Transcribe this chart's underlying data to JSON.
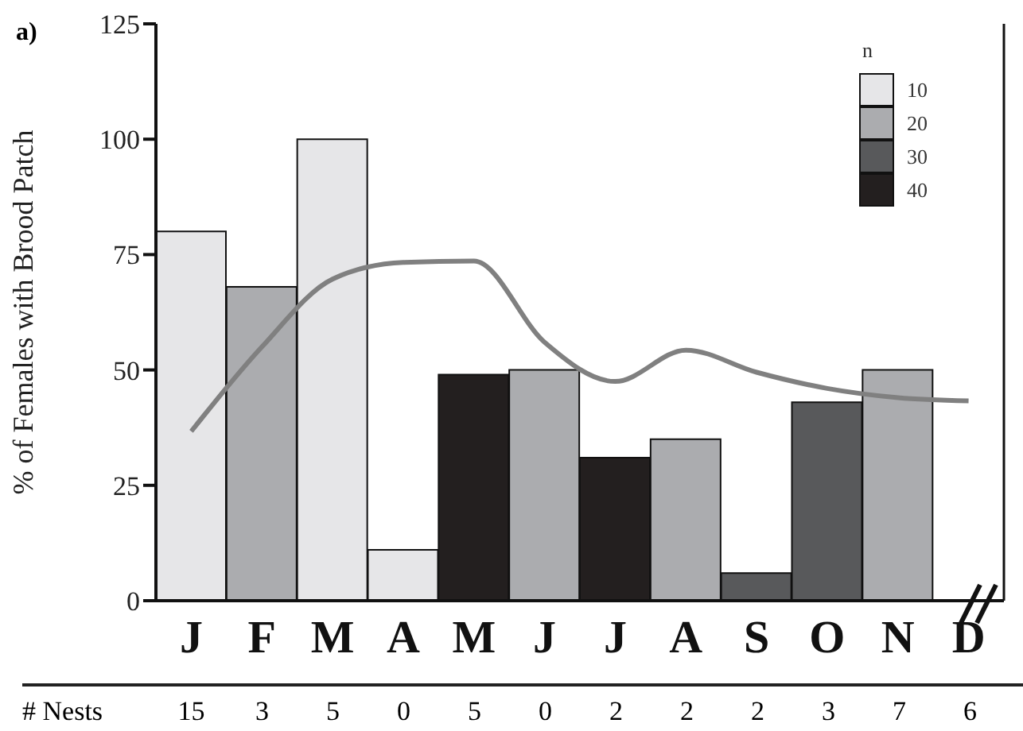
{
  "chart_data": {
    "type": "bar",
    "stacked": true,
    "ylabel": "% of Females with Brood Patch",
    "legend_title": "n",
    "legend": "top right",
    "categories": [
      "J",
      "F",
      "M",
      "A",
      "M",
      "J",
      "J",
      "A",
      "S",
      "O",
      "N",
      "D"
    ],
    "ylim": [
      0,
      125
    ],
    "yticks": [
      0,
      25,
      50,
      75,
      100,
      125
    ],
    "series": [
      {
        "name": "10",
        "color": "#e6e6e8",
        "values": [
          80,
          null,
          100,
          11,
          null,
          null,
          null,
          null,
          null,
          null,
          null,
          null
        ]
      },
      {
        "name": "20",
        "color": "#abacaf",
        "values": [
          null,
          68,
          null,
          null,
          null,
          50,
          null,
          35,
          null,
          null,
          50,
          null
        ]
      },
      {
        "name": "30",
        "color": "#58595b",
        "values": [
          null,
          null,
          null,
          null,
          null,
          null,
          null,
          null,
          6,
          43,
          null,
          null
        ]
      },
      {
        "name": "40",
        "color": "#231f1f",
        "values": [
          null,
          null,
          null,
          null,
          49,
          null,
          31,
          null,
          null,
          null,
          null,
          null
        ]
      },
      {
        "type": "line",
        "color": "#808080",
        "marker": "none",
        "values": [
          36.7,
          55,
          69.7,
          73.3,
          73.6,
          56,
          47.5,
          54.3,
          49.5,
          46,
          44,
          43.3
        ]
      }
    ],
    "annotations": [
      "a)",
      "# Nests",
      "15",
      "3",
      "5",
      "0",
      "5",
      "0",
      "2",
      "2",
      "2",
      "3",
      "7",
      "6"
    ]
  }
}
